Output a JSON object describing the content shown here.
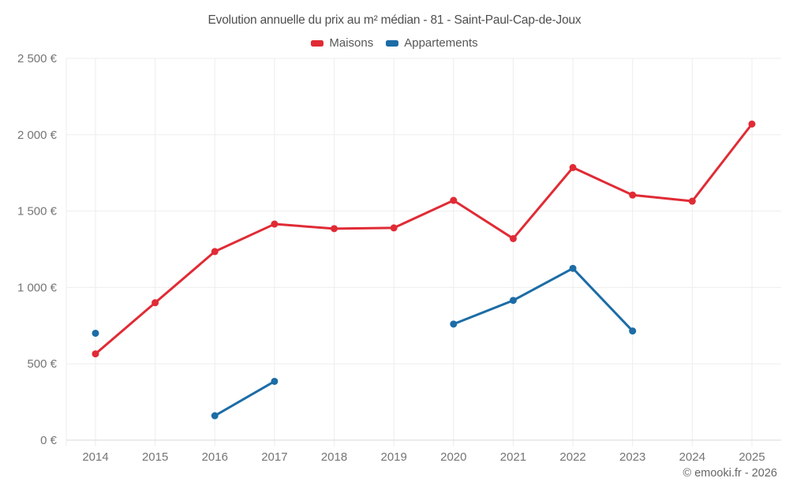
{
  "page": {
    "background": "#ffffff",
    "footer": "© emooki.fr - 2026"
  },
  "chart_data": {
    "type": "line",
    "title": "Evolution annuelle du prix au m² médian - 81 - Saint-Paul-Cap-de-Joux",
    "categories": [
      "2014",
      "2015",
      "2016",
      "2017",
      "2018",
      "2019",
      "2020",
      "2021",
      "2022",
      "2023",
      "2024",
      "2025"
    ],
    "series": [
      {
        "name": "Maisons",
        "color": "#e02b35",
        "values": [
          565,
          900,
          1235,
          1415,
          1385,
          1390,
          1570,
          1320,
          1785,
          1605,
          1565,
          2070
        ]
      },
      {
        "name": "Appartements",
        "color": "#1c6ca6",
        "values": [
          700,
          null,
          160,
          385,
          null,
          null,
          760,
          915,
          1125,
          715,
          null,
          null
        ]
      }
    ],
    "xlabel": "",
    "ylabel": "",
    "ylim": [
      0,
      2500
    ],
    "y_ticks": [
      {
        "value": 0,
        "label": "0 €"
      },
      {
        "value": 500,
        "label": "500 €"
      },
      {
        "value": 1000,
        "label": "1 000 €"
      },
      {
        "value": 1500,
        "label": "1 500 €"
      },
      {
        "value": 2000,
        "label": "2 000 €"
      },
      {
        "value": 2500,
        "label": "2 500 €"
      }
    ],
    "grid": true,
    "legend_position": "top",
    "grid_color": "#ededed",
    "axis_line_color": "#d9d9d9",
    "tick_text_color": "#757575"
  }
}
